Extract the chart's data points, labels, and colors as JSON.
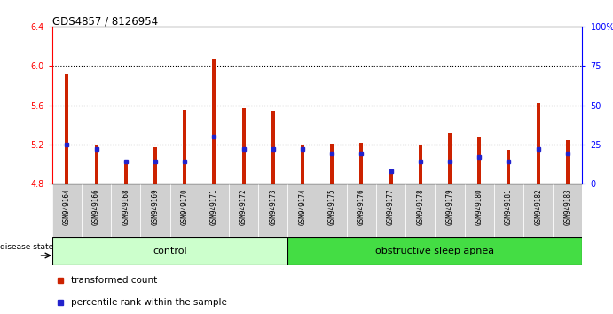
{
  "title": "GDS4857 / 8126954",
  "samples": [
    "GSM949164",
    "GSM949166",
    "GSM949168",
    "GSM949169",
    "GSM949170",
    "GSM949171",
    "GSM949172",
    "GSM949173",
    "GSM949174",
    "GSM949175",
    "GSM949176",
    "GSM949177",
    "GSM949178",
    "GSM949179",
    "GSM949180",
    "GSM949181",
    "GSM949182",
    "GSM949183"
  ],
  "red_values": [
    5.92,
    5.2,
    5.0,
    5.17,
    5.55,
    6.07,
    5.57,
    5.54,
    5.2,
    5.21,
    5.22,
    4.93,
    5.19,
    5.32,
    5.28,
    5.14,
    5.62,
    5.24
  ],
  "blue_pct": [
    25,
    22,
    14,
    14,
    14,
    30,
    22,
    22,
    22,
    19,
    19,
    8,
    14,
    14,
    17,
    14,
    22,
    19
  ],
  "control_count": 8,
  "ylim_left": [
    4.8,
    6.4
  ],
  "ylim_right": [
    0,
    100
  ],
  "yticks_left": [
    4.8,
    5.2,
    5.6,
    6.0,
    6.4
  ],
  "yticks_right": [
    0,
    25,
    50,
    75,
    100
  ],
  "ytick_labels_right": [
    "0",
    "25",
    "50",
    "75",
    "100%"
  ],
  "grid_values": [
    5.2,
    5.6,
    6.0
  ],
  "bar_color": "#cc2200",
  "blue_color": "#2222cc",
  "control_color": "#ccffcc",
  "apnea_color": "#44dd44",
  "base": 4.8,
  "bar_width": 0.12
}
